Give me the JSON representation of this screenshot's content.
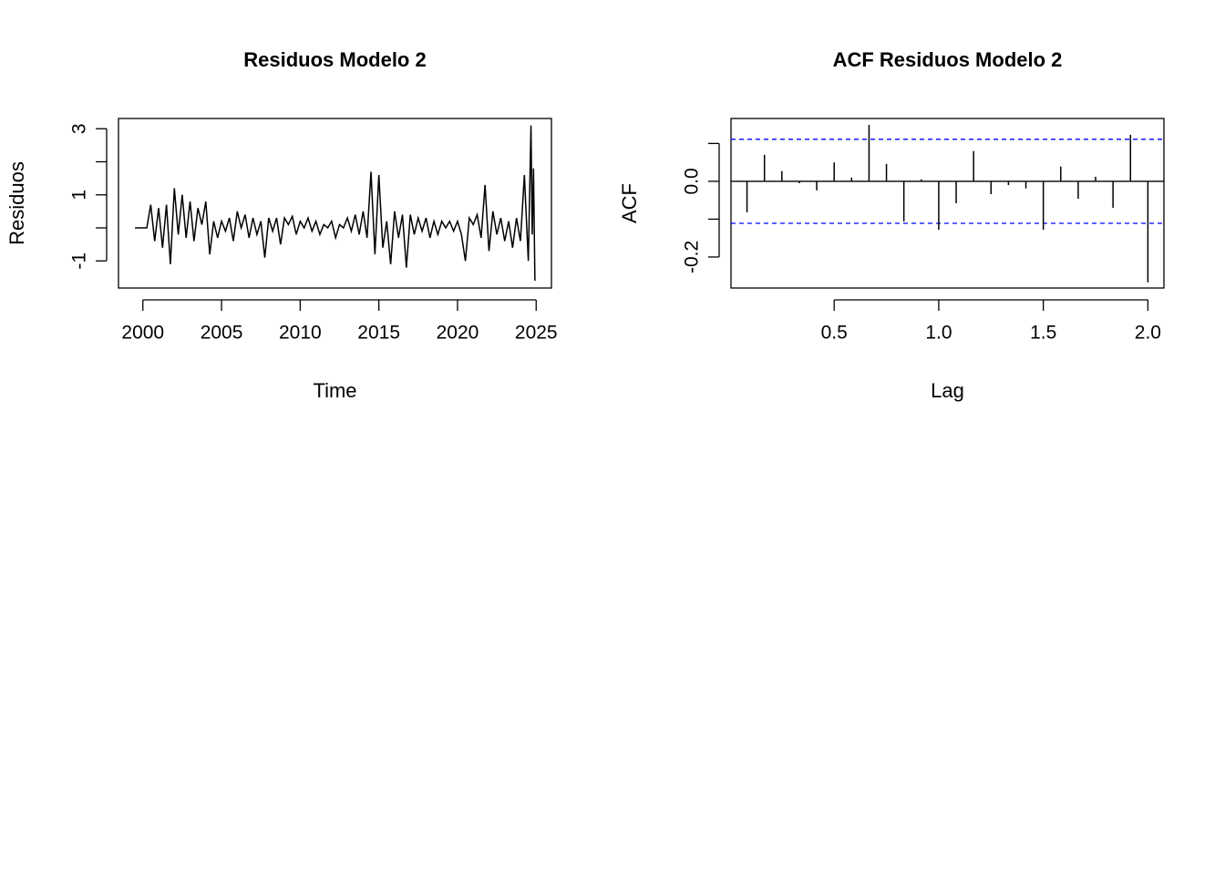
{
  "chart_data": [
    {
      "type": "line",
      "title": "Residuos Modelo 2",
      "xlabel": "Time",
      "ylabel": "Residuos",
      "color": "#000000",
      "x": [
        1999.5,
        1999.75,
        2000.0,
        2000.25,
        2000.5,
        2000.75,
        2001.0,
        2001.25,
        2001.5,
        2001.75,
        2002.0,
        2002.25,
        2002.5,
        2002.75,
        2003.0,
        2003.25,
        2003.5,
        2003.75,
        2004.0,
        2004.25,
        2004.5,
        2004.75,
        2005.0,
        2005.25,
        2005.5,
        2005.75,
        2006.0,
        2006.25,
        2006.5,
        2006.75,
        2007.0,
        2007.25,
        2007.5,
        2007.75,
        2008.0,
        2008.25,
        2008.5,
        2008.75,
        2009.0,
        2009.25,
        2009.5,
        2009.75,
        2010.0,
        2010.25,
        2010.5,
        2010.75,
        2011.0,
        2011.25,
        2011.5,
        2011.75,
        2012.0,
        2012.25,
        2012.5,
        2012.75,
        2013.0,
        2013.25,
        2013.5,
        2013.75,
        2014.0,
        2014.25,
        2014.5,
        2014.75,
        2015.0,
        2015.25,
        2015.5,
        2015.75,
        2016.0,
        2016.25,
        2016.5,
        2016.75,
        2017.0,
        2017.25,
        2017.5,
        2017.75,
        2018.0,
        2018.25,
        2018.5,
        2018.75,
        2019.0,
        2019.25,
        2019.5,
        2019.75,
        2020.0,
        2020.25,
        2020.5,
        2020.75,
        2021.0,
        2021.25,
        2021.5,
        2021.75,
        2022.0,
        2022.25,
        2022.5,
        2022.75,
        2023.0,
        2023.25,
        2023.5,
        2023.75,
        2024.0,
        2024.25,
        2024.5,
        2024.67,
        2024.75,
        2024.83,
        2024.92
      ],
      "values": [
        0,
        0,
        0,
        0,
        0.7,
        -0.4,
        0.6,
        -0.6,
        0.7,
        -1.1,
        1.2,
        -0.2,
        1.0,
        -0.3,
        0.8,
        -0.4,
        0.6,
        0.1,
        0.8,
        -0.8,
        0.2,
        -0.3,
        0.2,
        -0.1,
        0.3,
        -0.4,
        0.5,
        0.0,
        0.4,
        -0.3,
        0.3,
        -0.2,
        0.2,
        -0.9,
        0.3,
        -0.1,
        0.3,
        -0.5,
        0.3,
        0.1,
        0.35,
        -0.2,
        0.2,
        0.0,
        0.3,
        -0.1,
        0.2,
        -0.2,
        0.1,
        0.0,
        0.2,
        -0.3,
        0.1,
        0.0,
        0.3,
        -0.1,
        0.4,
        -0.2,
        0.5,
        -0.3,
        1.7,
        -0.8,
        1.6,
        -0.6,
        0.2,
        -1.1,
        0.5,
        -0.3,
        0.4,
        -1.2,
        0.4,
        -0.2,
        0.3,
        -0.1,
        0.3,
        -0.3,
        0.2,
        -0.2,
        0.2,
        0.0,
        0.2,
        -0.1,
        0.2,
        -0.2,
        -1.0,
        0.3,
        0.1,
        0.4,
        -0.3,
        1.3,
        -0.7,
        0.5,
        -0.2,
        0.3,
        -0.4,
        0.2,
        -0.6,
        0.3,
        -0.4,
        1.6,
        -1.0,
        3.1,
        -0.2,
        1.8,
        -1.6
      ],
      "xlim": [
        1998.45,
        2025.97
      ],
      "ylim": [
        -1.82,
        3.31
      ],
      "xticks": [
        2000,
        2005,
        2010,
        2015,
        2020,
        2025
      ],
      "yticks": [
        -1,
        {
          "value": 0,
          "label": null
        },
        1,
        {
          "value": 2,
          "label": null
        },
        3
      ]
    },
    {
      "type": "acf",
      "title": "ACF Residuos Modelo 2",
      "xlabel": "Lag",
      "ylabel": "ACF",
      "color": "#000000",
      "x": [
        0.0833,
        0.1667,
        0.25,
        0.3333,
        0.4167,
        0.5,
        0.5833,
        0.6667,
        0.75,
        0.8333,
        0.9167,
        1.0,
        1.0833,
        1.1667,
        1.25,
        1.3333,
        1.4167,
        1.5,
        1.5833,
        1.6667,
        1.75,
        1.8333,
        1.9167,
        2.0
      ],
      "values": [
        -0.082,
        0.07,
        0.027,
        -0.005,
        -0.024,
        0.05,
        0.01,
        0.149,
        0.046,
        -0.106,
        0.005,
        -0.128,
        -0.058,
        0.08,
        -0.034,
        -0.01,
        -0.019,
        -0.128,
        0.039,
        -0.046,
        0.012,
        -0.07,
        0.123,
        -0.267
      ],
      "ci": [
        0.111,
        -0.111
      ],
      "ci_color": "#0000ff",
      "xlim": [
        0.0067,
        2.0767
      ],
      "ylim": [
        -0.282,
        0.166
      ],
      "xticks": [
        0.5,
        {
          "value": 1.0,
          "label": "1.0"
        },
        1.5,
        {
          "value": 2.0,
          "label": "2.0"
        }
      ],
      "yticks": [
        -0.2,
        {
          "value": -0.1,
          "label": null
        },
        {
          "value": 0.0,
          "label": "0.0"
        },
        {
          "value": 0.1,
          "label": null
        }
      ]
    }
  ]
}
